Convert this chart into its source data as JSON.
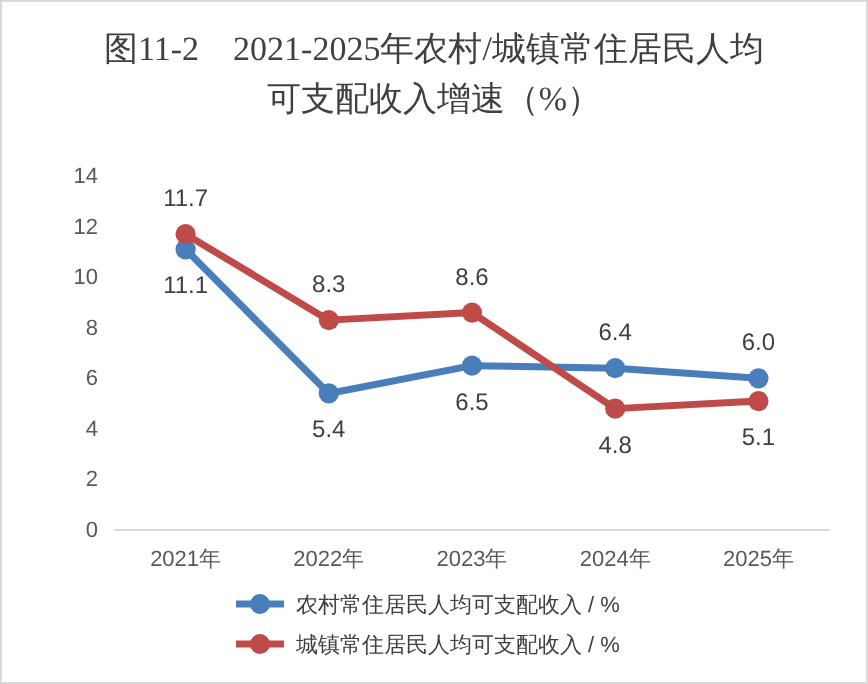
{
  "chart_data": {
    "type": "line",
    "title": "图11-2　2021-2025年农村/城镇常住居民人均可支配收入增速（%）",
    "categories": [
      "2021年",
      "2022年",
      "2023年",
      "2024年",
      "2025年"
    ],
    "series": [
      {
        "name": "农村常住居民人均可支配收入 / %",
        "color": "#4a7ebb",
        "values": [
          11.1,
          5.4,
          6.5,
          6.4,
          6.0
        ],
        "value_labels": [
          "11.1",
          "5.4",
          "6.5",
          "6.4",
          "6.0"
        ]
      },
      {
        "name": "城镇常住居民人均可支配收入 / %",
        "color": "#be4b48",
        "values": [
          11.7,
          8.3,
          8.6,
          4.8,
          5.1
        ],
        "value_labels": [
          "11.7",
          "8.3",
          "8.6",
          "4.8",
          "5.1"
        ]
      }
    ],
    "ylim": [
      0,
      14
    ],
    "yticks": [
      0,
      2,
      4,
      6,
      8,
      10,
      12,
      14
    ],
    "grid": false,
    "legend": "bottom",
    "marker": "circle",
    "line_style": "solid"
  }
}
